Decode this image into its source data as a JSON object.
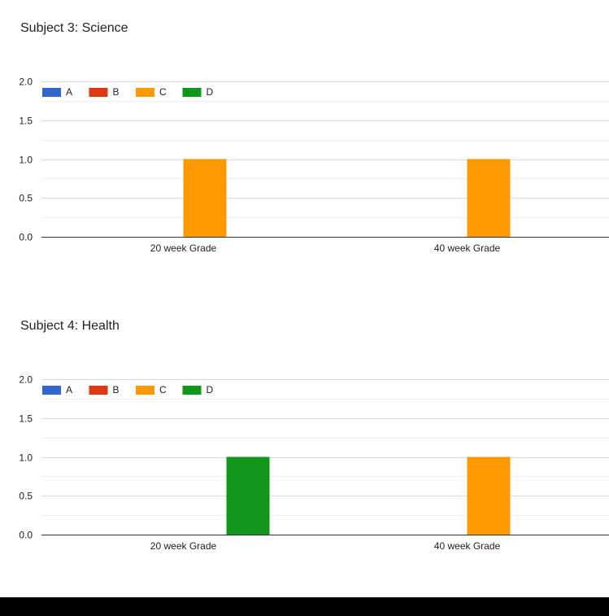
{
  "colors": {
    "A": "#3366cc",
    "B": "#dc3912",
    "C": "#ff9900",
    "D": "#109618",
    "grid_major": "#d9d9d9",
    "grid_minor": "#eeeeee",
    "axis": "#333333",
    "text": "#222222",
    "bottom_bar": "#000000"
  },
  "chart_data": [
    {
      "type": "bar",
      "title": "Subject 3: Science",
      "categories": [
        "20 week Grade",
        "40 week Grade"
      ],
      "series": [
        {
          "name": "A",
          "values": [
            0,
            0
          ]
        },
        {
          "name": "B",
          "values": [
            0,
            0
          ]
        },
        {
          "name": "C",
          "values": [
            1,
            1
          ]
        },
        {
          "name": "D",
          "values": [
            0,
            0
          ]
        }
      ],
      "ylim": [
        0,
        2
      ],
      "yticks": [
        "0.0",
        "0.5",
        "1.0",
        "1.5",
        "2.0"
      ],
      "xlabel": "",
      "ylabel": "",
      "grid": true,
      "legend": "top-left"
    },
    {
      "type": "bar",
      "title": "Subject 4: Health",
      "categories": [
        "20 week Grade",
        "40 week Grade"
      ],
      "series": [
        {
          "name": "A",
          "values": [
            0,
            0
          ]
        },
        {
          "name": "B",
          "values": [
            0,
            0
          ]
        },
        {
          "name": "C",
          "values": [
            0,
            1
          ]
        },
        {
          "name": "D",
          "values": [
            1,
            0
          ]
        }
      ],
      "ylim": [
        0,
        2
      ],
      "yticks": [
        "0.0",
        "0.5",
        "1.0",
        "1.5",
        "2.0"
      ],
      "xlabel": "",
      "ylabel": "",
      "grid": true,
      "legend": "top-left"
    }
  ]
}
